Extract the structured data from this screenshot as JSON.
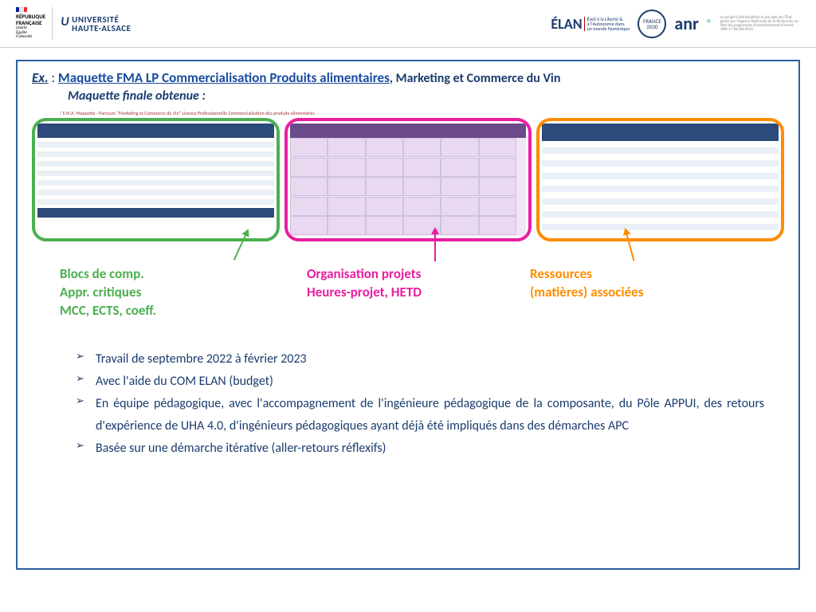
{
  "header": {
    "rf": "RÉPUBLIQUE\nFRANÇAISE",
    "rf_motto": "Liberté\nÉgalité\nFraternité",
    "uha_top": "UNIVERSITÉ",
    "uha_bottom": "HAUTE-ALSACE",
    "elan": "ÉLAN",
    "elan_sub": "Éveil à la Liberté &\nà l'Autonomie dans\nun monde Numérique",
    "france": "FRANCE\n2030",
    "anr": "anr",
    "anr_sub": "Le projet ELAN bénéficie d'une aide de l'État gérée par l'Agence Nationale de la Recherche au titre du programme d'investissement d'avenir ANR-17-NCUN-0016"
  },
  "title": {
    "ex": "Ex.",
    "colon": " : ",
    "link": "Maquette FMA LP Commercialisation Produits alimentaires",
    "comma": ", ",
    "rest": "Marketing et Commerce du Vin"
  },
  "subtitle": "Maquette finale obtenue :",
  "tiny_caption": "/ F.M.A.    Maquette - Parcours \"Marketing et Commerce du Vin\" Licence Professionnelle Commercialisation des produits alimentaires",
  "colors": {
    "green": "#4caf50",
    "pink": "#e91ea0",
    "orange": "#ff8c00"
  },
  "labels": {
    "green": "Blocs de comp.\nAppr. critiques\nMCC, ECTS, coeff.",
    "pink": "Organisation projets\nHeures-projet, HETD",
    "orange": "Ressources\n(matières) associées"
  },
  "bullets": [
    "Travail de septembre 2022 à février 2023",
    "Avec l'aide du COM ELAN (budget)",
    "En équipe pédagogique, avec l'accompagnement de l'ingénieure pédagogique de la composante, du Pôle APPUI, des retours d'expérience de UHA 4.0, d'ingénieurs pédagogiques ayant déjà été impliqués dans des démarches APC",
    "Basée sur une démarche itérative (aller-retours réflexifs)"
  ]
}
